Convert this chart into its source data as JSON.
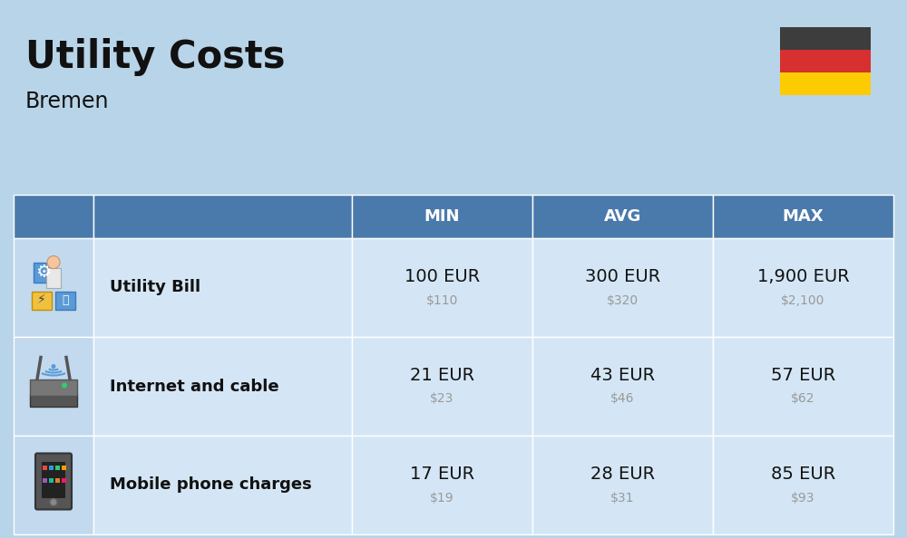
{
  "title": "Utility Costs",
  "subtitle": "Bremen",
  "bg_color": "#b8d4e8",
  "table_header_color": "#4a7aab",
  "table_header_text_color": "#ffffff",
  "table_row_color": "#d4e6f5",
  "table_icon_col_color": "#c2d9ee",
  "col_headers": [
    "MIN",
    "AVG",
    "MAX"
  ],
  "rows": [
    {
      "label": "Utility Bill",
      "min_eur": "100 EUR",
      "min_usd": "$110",
      "avg_eur": "300 EUR",
      "avg_usd": "$320",
      "max_eur": "1,900 EUR",
      "max_usd": "$2,100"
    },
    {
      "label": "Internet and cable",
      "min_eur": "21 EUR",
      "min_usd": "$23",
      "avg_eur": "43 EUR",
      "avg_usd": "$46",
      "max_eur": "57 EUR",
      "max_usd": "$62"
    },
    {
      "label": "Mobile phone charges",
      "min_eur": "17 EUR",
      "min_usd": "$19",
      "avg_eur": "28 EUR",
      "avg_usd": "$31",
      "max_eur": "85 EUR",
      "max_usd": "$93"
    }
  ],
  "flag_colors": [
    "#3d3d3d",
    "#d63031",
    "#fdcb02"
  ],
  "text_color_dark": "#111111",
  "text_color_usd": "#999999",
  "title_fontsize": 30,
  "subtitle_fontsize": 17,
  "header_fontsize": 13,
  "label_fontsize": 13,
  "eur_fontsize": 14,
  "usd_fontsize": 10
}
